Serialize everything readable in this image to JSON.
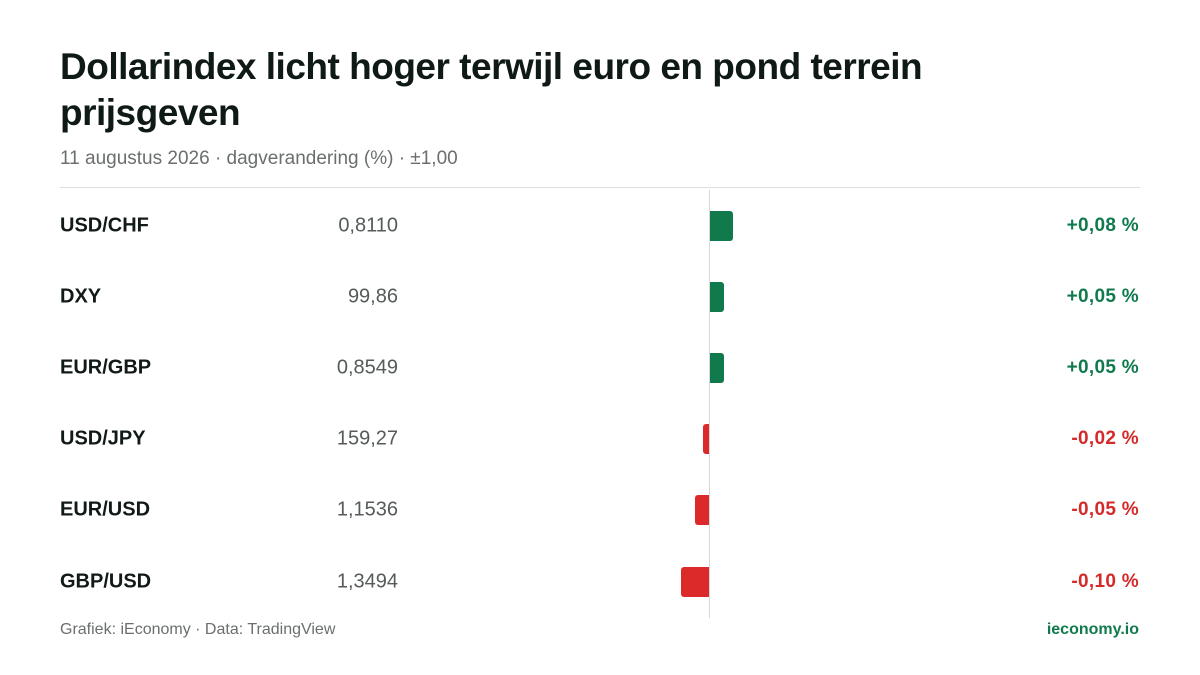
{
  "header": {
    "title": "Dollarindex licht hoger terwijl euro en pond terrein prijsgeven",
    "subtitle": "11 augustus 2026 · dagverandering (%) · ±1,00"
  },
  "footer": {
    "credit": "Grafiek: iEconomy · Data: TradingView",
    "brand": "ieconomy.io"
  },
  "colors": {
    "positive": "#117a4d",
    "negative": "#dc2a2a"
  },
  "chart_data": {
    "type": "bar",
    "orientation": "horizontal",
    "title": "Dollarindex licht hoger terwijl euro en pond terrein prijsgeven",
    "subtitle": "11 augustus 2026 · dagverandering (%) · ±1,00",
    "xlim": [
      -1,
      1
    ],
    "categories": [
      "USD/CHF",
      "DXY",
      "EUR/GBP",
      "USD/JPY",
      "EUR/USD",
      "GBP/USD"
    ],
    "prices": [
      "0,8110",
      "99,86",
      "0,8549",
      "159,27",
      "1,1536",
      "1,3494"
    ],
    "values": [
      0.08,
      0.05,
      0.05,
      -0.02,
      -0.05,
      -0.1
    ],
    "value_labels": [
      "+0,08 %",
      "+0,05 %",
      "+0,05 %",
      "-0,02 %",
      "-0,05 %",
      "-0,10 %"
    ],
    "grid": false,
    "legend": "none"
  }
}
